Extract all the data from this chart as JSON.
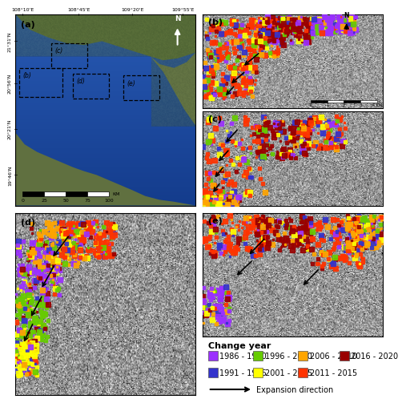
{
  "figure_title": "",
  "panel_labels": [
    "(a)",
    "(b)",
    "(c)",
    "(d)",
    "(e)"
  ],
  "legend_title": "Change year",
  "legend_items": [
    {
      "label": "1986 - 1990",
      "color": "#9B30FF"
    },
    {
      "label": "1991 - 1995",
      "color": "#3333CC"
    },
    {
      "label": "1996 - 2000",
      "color": "#66CC00"
    },
    {
      "label": "2001 - 2005",
      "color": "#FFFF00"
    },
    {
      "label": "2006 - 2010",
      "color": "#FFA500"
    },
    {
      "label": "2011 - 2015",
      "color": "#FF3300"
    },
    {
      "label": "2016 - 2020",
      "color": "#990000"
    }
  ],
  "expansion_label": "Expansion direction",
  "lon_labels": [
    "108°10'E",
    "108°45'E",
    "109°20'E",
    "109°55'E"
  ],
  "lat_labels": [
    "21°31'N",
    "20°56'N",
    "20°21'N",
    "19°46'N"
  ],
  "scalebar_vals": [
    0,
    25,
    50,
    75,
    100
  ],
  "scalebar_unit": "KM",
  "figure_bg": "#FFFFFF",
  "panel_border_color": "#000000",
  "panel_border_lw": 0.8,
  "label_fontsize": 8,
  "legend_fontsize": 7,
  "legend_title_fontsize": 8,
  "tick_fontsize": 6
}
